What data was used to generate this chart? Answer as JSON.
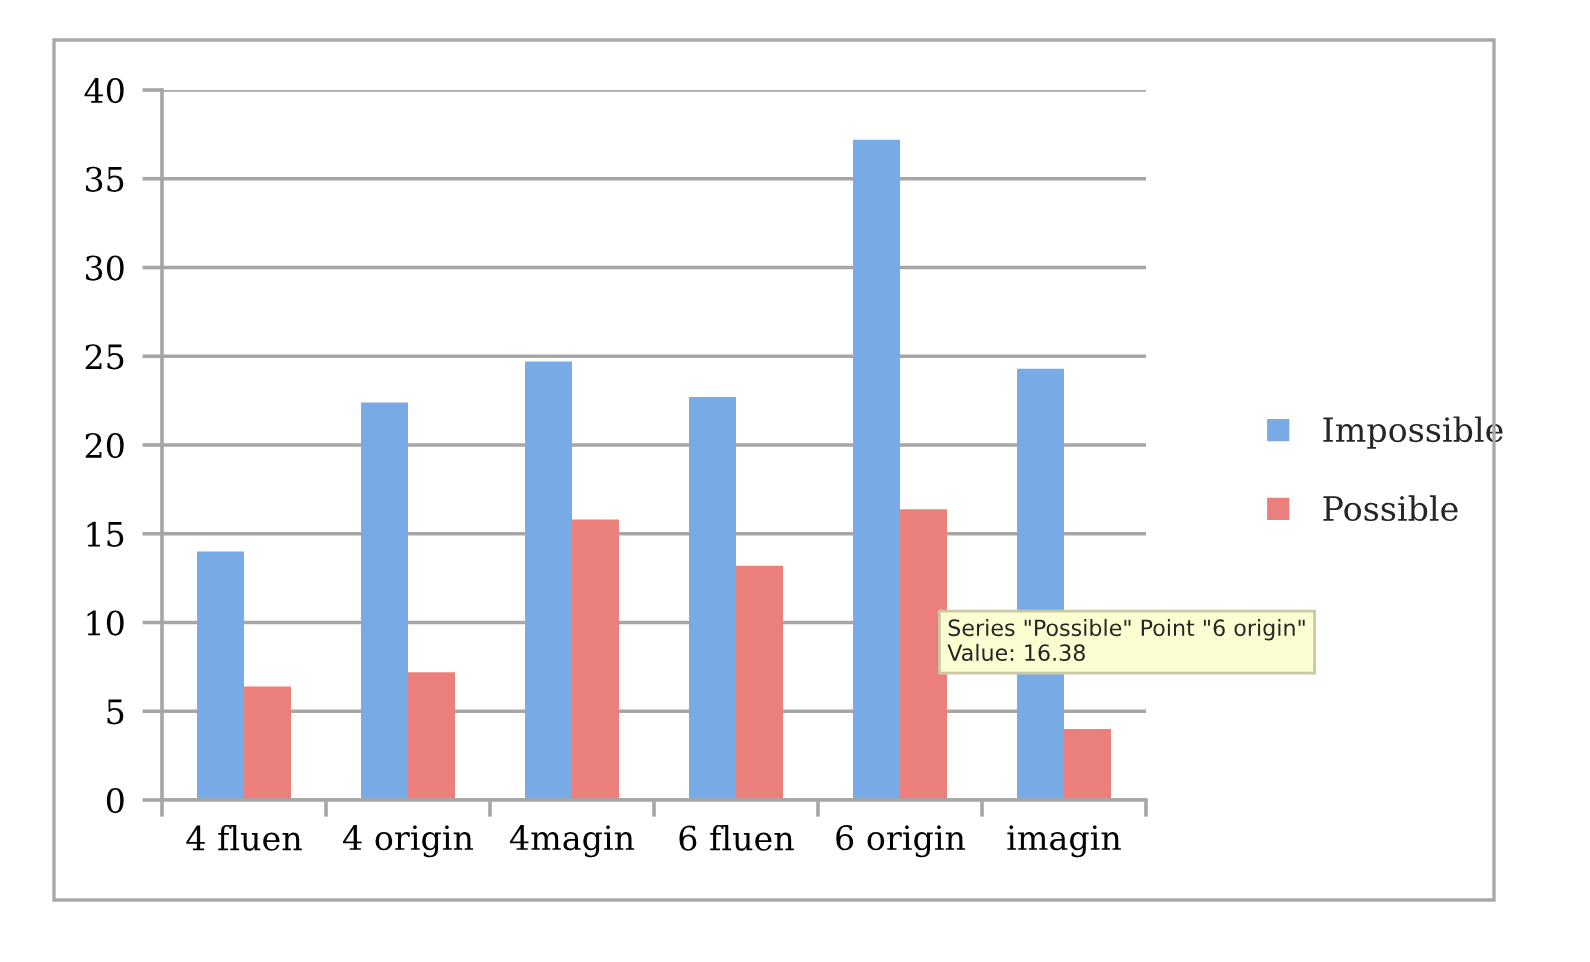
{
  "chart_data": {
    "type": "bar",
    "categories": [
      "4 fluen",
      "4 origin",
      "4magin",
      "6 fluen",
      "6 origin",
      "imagin"
    ],
    "series": [
      {
        "name": "Impossible",
        "color": "#78abe6",
        "values": [
          14.0,
          22.4,
          24.7,
          22.7,
          37.2,
          24.3
        ]
      },
      {
        "name": "Possible",
        "color": "#ea7f7b",
        "values": [
          6.4,
          7.2,
          15.8,
          13.2,
          16.38,
          4.0
        ]
      }
    ],
    "ylim": [
      0,
      40
    ],
    "yticks": [
      0,
      5,
      10,
      15,
      20,
      25,
      30,
      35,
      40
    ],
    "grid": "y",
    "legend": "right",
    "annotations": [
      "Series \"Possible\" Point \"6 origin\"\nValue: 16.38"
    ]
  }
}
